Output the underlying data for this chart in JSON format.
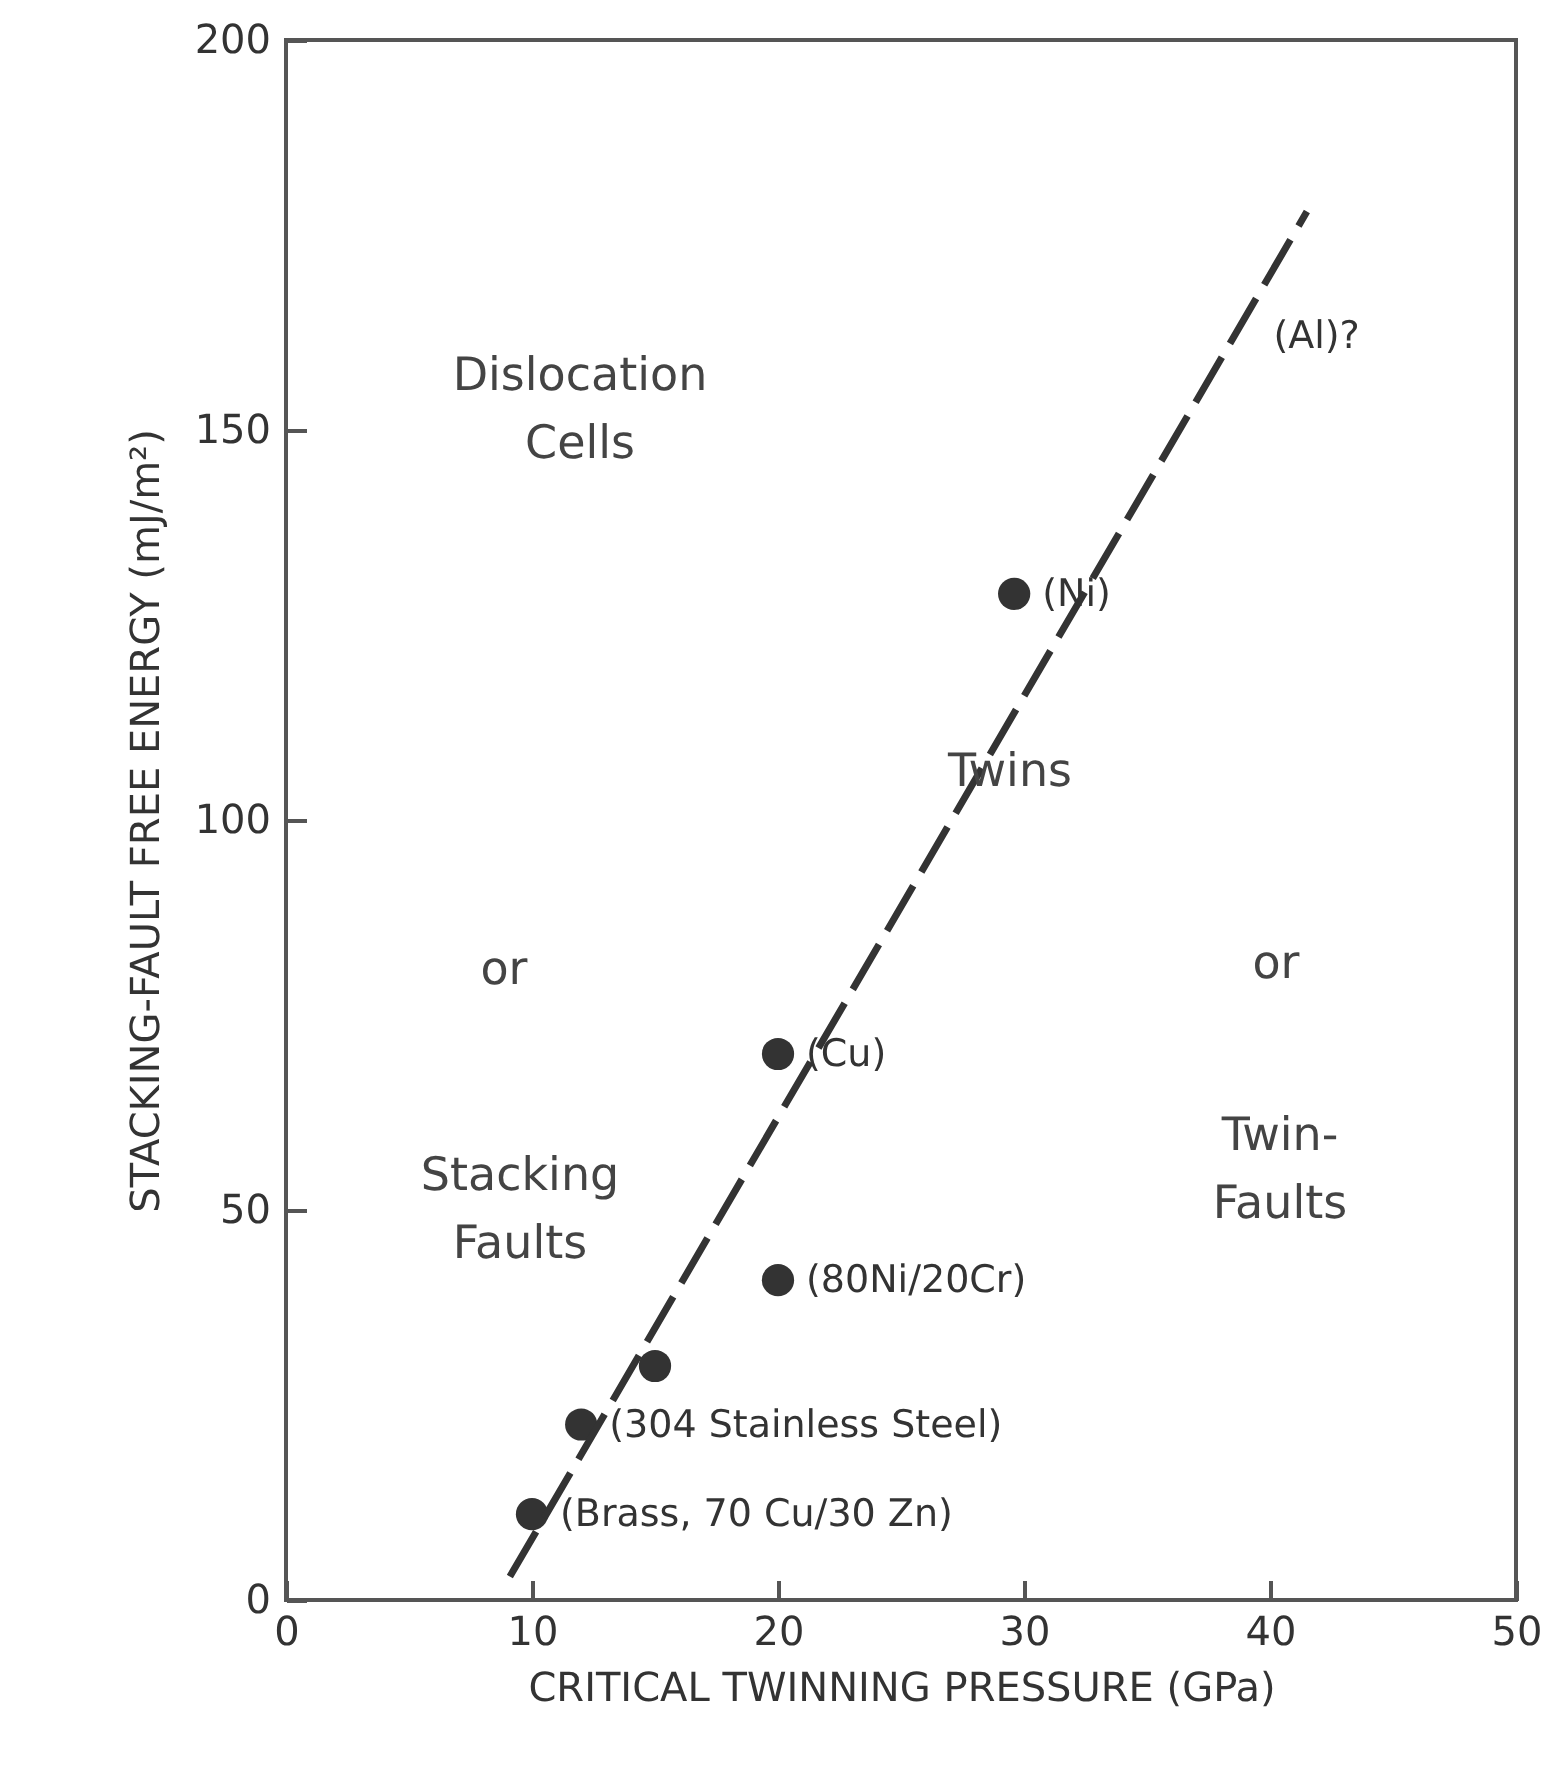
{
  "chart_data": {
    "type": "scatter",
    "xlabel": "CRITICAL TWINNING PRESSURE  (GPa)",
    "ylabel": "STACKING-FAULT FREE ENERGY  (mJ/m²)",
    "xlim": [
      0,
      50
    ],
    "xticks": [
      0,
      10,
      20,
      30,
      40,
      50
    ],
    "ylim": [
      0,
      200
    ],
    "yticks": [
      0,
      50,
      100,
      150,
      200
    ],
    "grid": false,
    "marker": "circle",
    "series": [
      {
        "color": "#333333",
        "x": [
          10,
          12,
          15,
          20,
          20,
          29.6
        ],
        "values": [
          11,
          22.5,
          30,
          41,
          70,
          129
        ]
      },
      {
        "type": "line",
        "color": "#333333",
        "line_style": "dashed",
        "marker": "none",
        "x": [
          9.1,
          41.5
        ],
        "values": [
          3,
          178
        ]
      }
    ],
    "annotations": [
      {
        "text": "(Brass, 70 Cu/30 Zn)",
        "x": 10,
        "y": 11
      },
      {
        "text": "(304 Stainless Steel)",
        "x": 12,
        "y": 22.5
      },
      {
        "text": "(80Ni/20Cr)",
        "x": 20,
        "y": 41
      },
      {
        "text": "(Cu)",
        "x": 20,
        "y": 70
      },
      {
        "text": "(Ni)",
        "x": 29.6,
        "y": 129
      },
      {
        "text": "(Al)?",
        "x": 39,
        "y": 162
      },
      "Dislocation\nCells",
      "or",
      "Stacking\nFaults",
      "Twins",
      "or",
      "Twin-\nFaults"
    ]
  }
}
